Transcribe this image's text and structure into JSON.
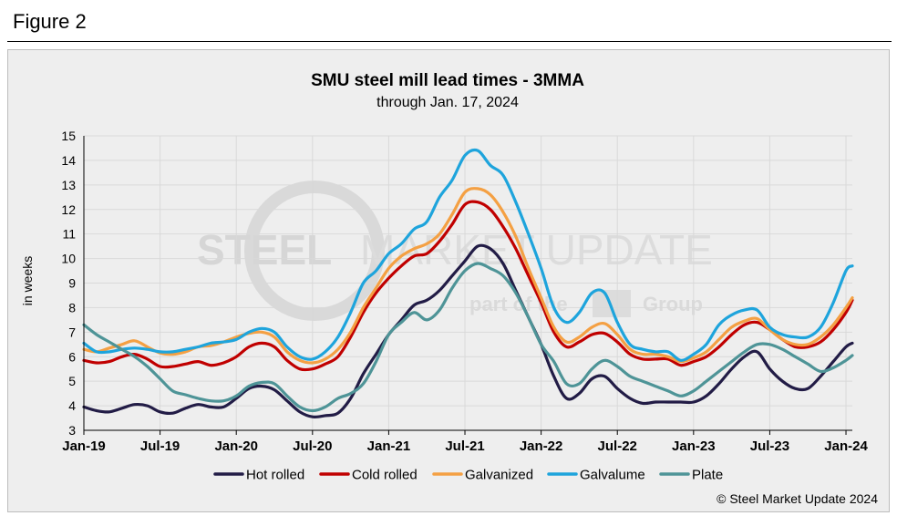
{
  "figure_label": "Figure 2",
  "copyright": "© Steel Market Update 2024",
  "watermark": {
    "line1_bold": "STEEL",
    "line1_thin": "MARKET UPDATE",
    "line2": "part of the",
    "line2_group": "Group"
  },
  "colors": {
    "Hot rolled": "#221c46",
    "Cold rolled": "#c00000",
    "Galvanized": "#f4a043",
    "Galvalume": "#1ea4dc",
    "Plate": "#4e9497"
  },
  "chart_data": {
    "type": "line",
    "title": "SMU steel mill lead times - 3MMA",
    "subtitle": "through Jan. 17, 2024",
    "xlabel": "",
    "ylabel": "in weeks",
    "ylim": [
      3,
      15
    ],
    "yticks": [
      3,
      4,
      5,
      6,
      7,
      8,
      9,
      10,
      11,
      12,
      13,
      14,
      15
    ],
    "xticks": [
      "Jan-19",
      "Jul-19",
      "Jan-20",
      "Jul-20",
      "Jan-21",
      "Jul-21",
      "Jan-22",
      "Jul-22",
      "Jan-23",
      "Jul-23",
      "Jan-24"
    ],
    "x_range_months": [
      0,
      60.5
    ],
    "grid": true,
    "legend_position": "bottom",
    "series": [
      {
        "name": "Hot rolled",
        "x": [
          0,
          1,
          2,
          3,
          4,
          5,
          6,
          7,
          8,
          9,
          10,
          11,
          12,
          13,
          14,
          15,
          16,
          17,
          18,
          19,
          20,
          21,
          22,
          23,
          24,
          25,
          26,
          27,
          28,
          29,
          30,
          31,
          32,
          33,
          34,
          35,
          36,
          37,
          38,
          39,
          40,
          41,
          42,
          43,
          44,
          45,
          46,
          47,
          48,
          49,
          50,
          51,
          52,
          53,
          54,
          55,
          56,
          57,
          58,
          59,
          60,
          60.5
        ],
        "values": [
          3.95,
          3.8,
          3.75,
          3.9,
          4.05,
          4.0,
          3.75,
          3.7,
          3.9,
          4.05,
          3.95,
          3.95,
          4.3,
          4.7,
          4.8,
          4.65,
          4.2,
          3.75,
          3.55,
          3.6,
          3.7,
          4.3,
          5.3,
          6.1,
          6.9,
          7.5,
          8.1,
          8.3,
          8.7,
          9.3,
          9.9,
          10.5,
          10.4,
          9.8,
          8.7,
          7.6,
          6.5,
          5.2,
          4.3,
          4.5,
          5.1,
          5.2,
          4.7,
          4.3,
          4.1,
          4.15,
          4.15,
          4.15,
          4.15,
          4.4,
          4.9,
          5.5,
          6.0,
          6.2,
          5.5,
          5.0,
          4.7,
          4.7,
          5.2,
          5.8,
          6.4,
          6.55
        ]
      },
      {
        "name": "Cold rolled",
        "x": [
          0,
          1,
          2,
          3,
          4,
          5,
          6,
          7,
          8,
          9,
          10,
          11,
          12,
          13,
          14,
          15,
          16,
          17,
          18,
          19,
          20,
          21,
          22,
          23,
          24,
          25,
          26,
          27,
          28,
          29,
          30,
          31,
          32,
          33,
          34,
          35,
          36,
          37,
          38,
          39,
          40,
          41,
          42,
          43,
          44,
          45,
          46,
          47,
          48,
          49,
          50,
          51,
          52,
          53,
          54,
          55,
          56,
          57,
          58,
          59,
          60,
          60.5
        ],
        "values": [
          5.85,
          5.75,
          5.8,
          6.0,
          6.1,
          5.9,
          5.6,
          5.6,
          5.7,
          5.8,
          5.65,
          5.75,
          6.0,
          6.4,
          6.55,
          6.4,
          5.85,
          5.5,
          5.5,
          5.7,
          6.0,
          6.8,
          7.8,
          8.6,
          9.2,
          9.7,
          10.1,
          10.2,
          10.7,
          11.4,
          12.2,
          12.3,
          12.0,
          11.3,
          10.4,
          9.3,
          8.2,
          7.0,
          6.4,
          6.6,
          6.9,
          6.95,
          6.6,
          6.1,
          5.9,
          5.9,
          5.9,
          5.65,
          5.8,
          6.0,
          6.4,
          6.9,
          7.3,
          7.4,
          7.1,
          6.7,
          6.4,
          6.4,
          6.6,
          7.1,
          7.8,
          8.3
        ]
      },
      {
        "name": "Galvanized",
        "x": [
          0,
          1,
          2,
          3,
          4,
          5,
          6,
          7,
          8,
          9,
          10,
          11,
          12,
          13,
          14,
          15,
          16,
          17,
          18,
          19,
          20,
          21,
          22,
          23,
          24,
          25,
          26,
          27,
          28,
          29,
          30,
          31,
          32,
          33,
          34,
          35,
          36,
          37,
          38,
          39,
          40,
          41,
          42,
          43,
          44,
          45,
          46,
          47,
          48,
          49,
          50,
          51,
          52,
          53,
          54,
          55,
          56,
          57,
          58,
          59,
          60,
          60.5
        ],
        "values": [
          6.3,
          6.2,
          6.35,
          6.5,
          6.65,
          6.4,
          6.15,
          6.1,
          6.2,
          6.4,
          6.45,
          6.6,
          6.8,
          6.95,
          7.0,
          6.8,
          6.2,
          5.85,
          5.75,
          5.9,
          6.3,
          7.0,
          8.0,
          8.8,
          9.6,
          10.1,
          10.4,
          10.6,
          11.0,
          11.8,
          12.7,
          12.85,
          12.6,
          11.9,
          10.9,
          9.6,
          8.4,
          7.2,
          6.6,
          6.8,
          7.2,
          7.35,
          6.9,
          6.3,
          6.1,
          6.1,
          6.0,
          5.8,
          5.95,
          6.2,
          6.7,
          7.2,
          7.45,
          7.55,
          7.1,
          6.7,
          6.5,
          6.5,
          6.8,
          7.3,
          8.0,
          8.4
        ]
      },
      {
        "name": "Galvalume",
        "x": [
          0,
          1,
          2,
          3,
          4,
          5,
          6,
          7,
          8,
          9,
          10,
          11,
          12,
          13,
          14,
          15,
          16,
          17,
          18,
          19,
          20,
          21,
          22,
          23,
          24,
          25,
          26,
          27,
          28,
          29,
          30,
          31,
          32,
          33,
          34,
          35,
          36,
          37,
          38,
          39,
          40,
          41,
          42,
          43,
          44,
          45,
          46,
          47,
          48,
          49,
          50,
          51,
          52,
          53,
          54,
          55,
          56,
          57,
          58,
          59,
          60,
          60.5
        ],
        "values": [
          6.55,
          6.2,
          6.2,
          6.3,
          6.35,
          6.3,
          6.2,
          6.2,
          6.3,
          6.4,
          6.55,
          6.6,
          6.7,
          7.0,
          7.15,
          7.0,
          6.4,
          6.0,
          5.9,
          6.2,
          6.8,
          7.8,
          9.0,
          9.5,
          10.2,
          10.6,
          11.2,
          11.5,
          12.5,
          13.2,
          14.2,
          14.4,
          13.8,
          13.4,
          12.3,
          11.0,
          9.6,
          8.0,
          7.4,
          7.8,
          8.6,
          8.6,
          7.4,
          6.5,
          6.3,
          6.2,
          6.2,
          5.85,
          6.1,
          6.5,
          7.3,
          7.7,
          7.9,
          7.9,
          7.2,
          6.9,
          6.8,
          6.8,
          7.2,
          8.2,
          9.5,
          9.7
        ]
      },
      {
        "name": "Plate",
        "x": [
          0,
          1,
          2,
          3,
          4,
          5,
          6,
          7,
          8,
          9,
          10,
          11,
          12,
          13,
          14,
          15,
          16,
          17,
          18,
          19,
          20,
          21,
          22,
          23,
          24,
          25,
          26,
          27,
          28,
          29,
          30,
          31,
          32,
          33,
          34,
          35,
          36,
          37,
          38,
          39,
          40,
          41,
          42,
          43,
          44,
          45,
          46,
          47,
          48,
          49,
          50,
          51,
          52,
          53,
          54,
          55,
          56,
          57,
          58,
          59,
          60,
          60.5
        ],
        "values": [
          7.3,
          6.9,
          6.6,
          6.3,
          6.0,
          5.6,
          5.1,
          4.6,
          4.45,
          4.3,
          4.2,
          4.2,
          4.4,
          4.8,
          4.95,
          4.9,
          4.4,
          3.95,
          3.8,
          3.95,
          4.3,
          4.5,
          4.9,
          5.8,
          6.9,
          7.4,
          7.8,
          7.5,
          7.9,
          8.8,
          9.5,
          9.8,
          9.6,
          9.3,
          8.6,
          7.6,
          6.5,
          5.8,
          4.9,
          4.9,
          5.5,
          5.85,
          5.6,
          5.2,
          5.0,
          4.8,
          4.6,
          4.4,
          4.6,
          5.0,
          5.4,
          5.8,
          6.2,
          6.5,
          6.5,
          6.3,
          6.0,
          5.7,
          5.4,
          5.55,
          5.85,
          6.05
        ]
      }
    ]
  }
}
